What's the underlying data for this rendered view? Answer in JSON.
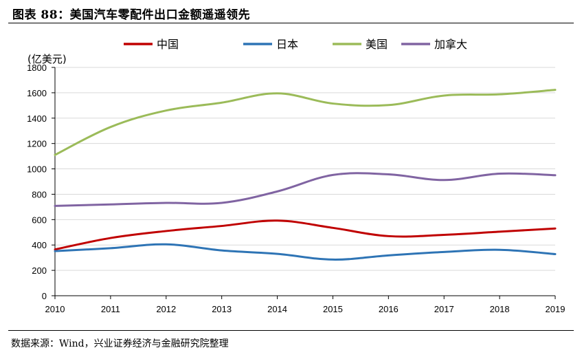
{
  "figure": {
    "title": "图表 88：美国汽车零配件出口金额遥遥领先",
    "source": "数据来源：Wind，兴业证券经济与金融研究院整理"
  },
  "chart_data": {
    "type": "line",
    "title": "",
    "ylabel": "(亿美元)",
    "xlabel": "",
    "x": [
      2010,
      2011,
      2012,
      2013,
      2014,
      2015,
      2016,
      2017,
      2018,
      2019
    ],
    "ylim": [
      0,
      1800
    ],
    "yticks": [
      0,
      200,
      400,
      600,
      800,
      1000,
      1200,
      1400,
      1600,
      1800
    ],
    "grid": true,
    "legend_position": "top",
    "series": [
      {
        "name": "中国",
        "color": "#c00000",
        "values": [
          365,
          455,
          510,
          550,
          592,
          535,
          470,
          480,
          505,
          530
        ]
      },
      {
        "name": "日本",
        "color": "#2e74b5",
        "values": [
          352,
          375,
          405,
          357,
          330,
          285,
          318,
          345,
          362,
          328
        ]
      },
      {
        "name": "美国",
        "color": "#9bbb59",
        "values": [
          1110,
          1330,
          1460,
          1522,
          1595,
          1515,
          1503,
          1578,
          1588,
          1623
        ]
      },
      {
        "name": "加拿大",
        "color": "#8064a2",
        "values": [
          708,
          720,
          732,
          732,
          822,
          952,
          957,
          912,
          962,
          950
        ]
      }
    ]
  }
}
